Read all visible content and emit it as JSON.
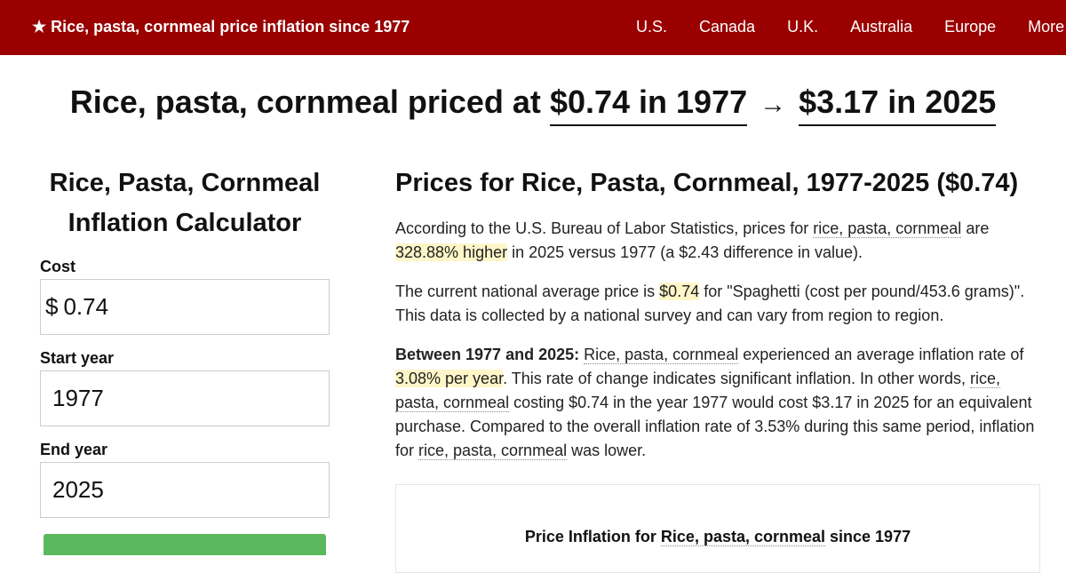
{
  "nav": {
    "brand": "★ Rice, pasta, cornmeal price inflation since 1977",
    "links": [
      "U.S.",
      "Canada",
      "U.K.",
      "Australia",
      "Europe",
      "More"
    ]
  },
  "headline": {
    "prefix": "Rice, pasta, cornmeal priced at",
    "start": "$0.74 in 1977",
    "arrow": "→",
    "end": "$3.17 in 2025"
  },
  "calculator": {
    "title_line1": "Rice, Pasta, Cornmeal",
    "title_line2": "Inflation Calculator",
    "cost_label": "Cost",
    "cost_prefix": "$",
    "cost_value": "0.74",
    "start_label": "Start year",
    "start_value": "1977",
    "end_label": "End year",
    "end_value": "2025"
  },
  "content": {
    "heading": "Prices for Rice, Pasta, Cornmeal, 1977-2025 ($0.74)",
    "p1": {
      "a": "According to the U.S. Bureau of Labor Statistics, prices for ",
      "item": "rice, pasta, cornmeal",
      "b": " are ",
      "pct": "328.88% higher",
      "c": " in 2025 versus 1977 (a $2.43 difference in value)."
    },
    "p2": {
      "a": "The current national average price is ",
      "price": "$0.74",
      "b": " for \"Spaghetti (cost per pound/453.6 grams)\". This data is collected by a national survey and can vary from region to region."
    },
    "p3": {
      "lead": "Between 1977 and 2025:",
      "item1": "Rice, pasta, cornmeal",
      "a": " experienced an average inflation rate of ",
      "rate": "3.08% per year",
      "b": ". This rate of change indicates significant inflation. In other words, ",
      "item2": "rice, pasta, cornmeal",
      "c": " costing $0.74 in the year 1977 would cost $3.17 in 2025 for an equivalent purchase. Compared to the overall inflation rate of 3.53% during this same period, inflation for ",
      "item3": "rice, pasta, cornmeal",
      "d": " was lower."
    },
    "chart_title": {
      "a": "Price Inflation for ",
      "item": "Rice, pasta, cornmeal",
      "b": " since 1977"
    }
  },
  "colors": {
    "nav_bg": "#9a0000",
    "highlight": "#fff6c8",
    "button": "#5cb85c"
  }
}
